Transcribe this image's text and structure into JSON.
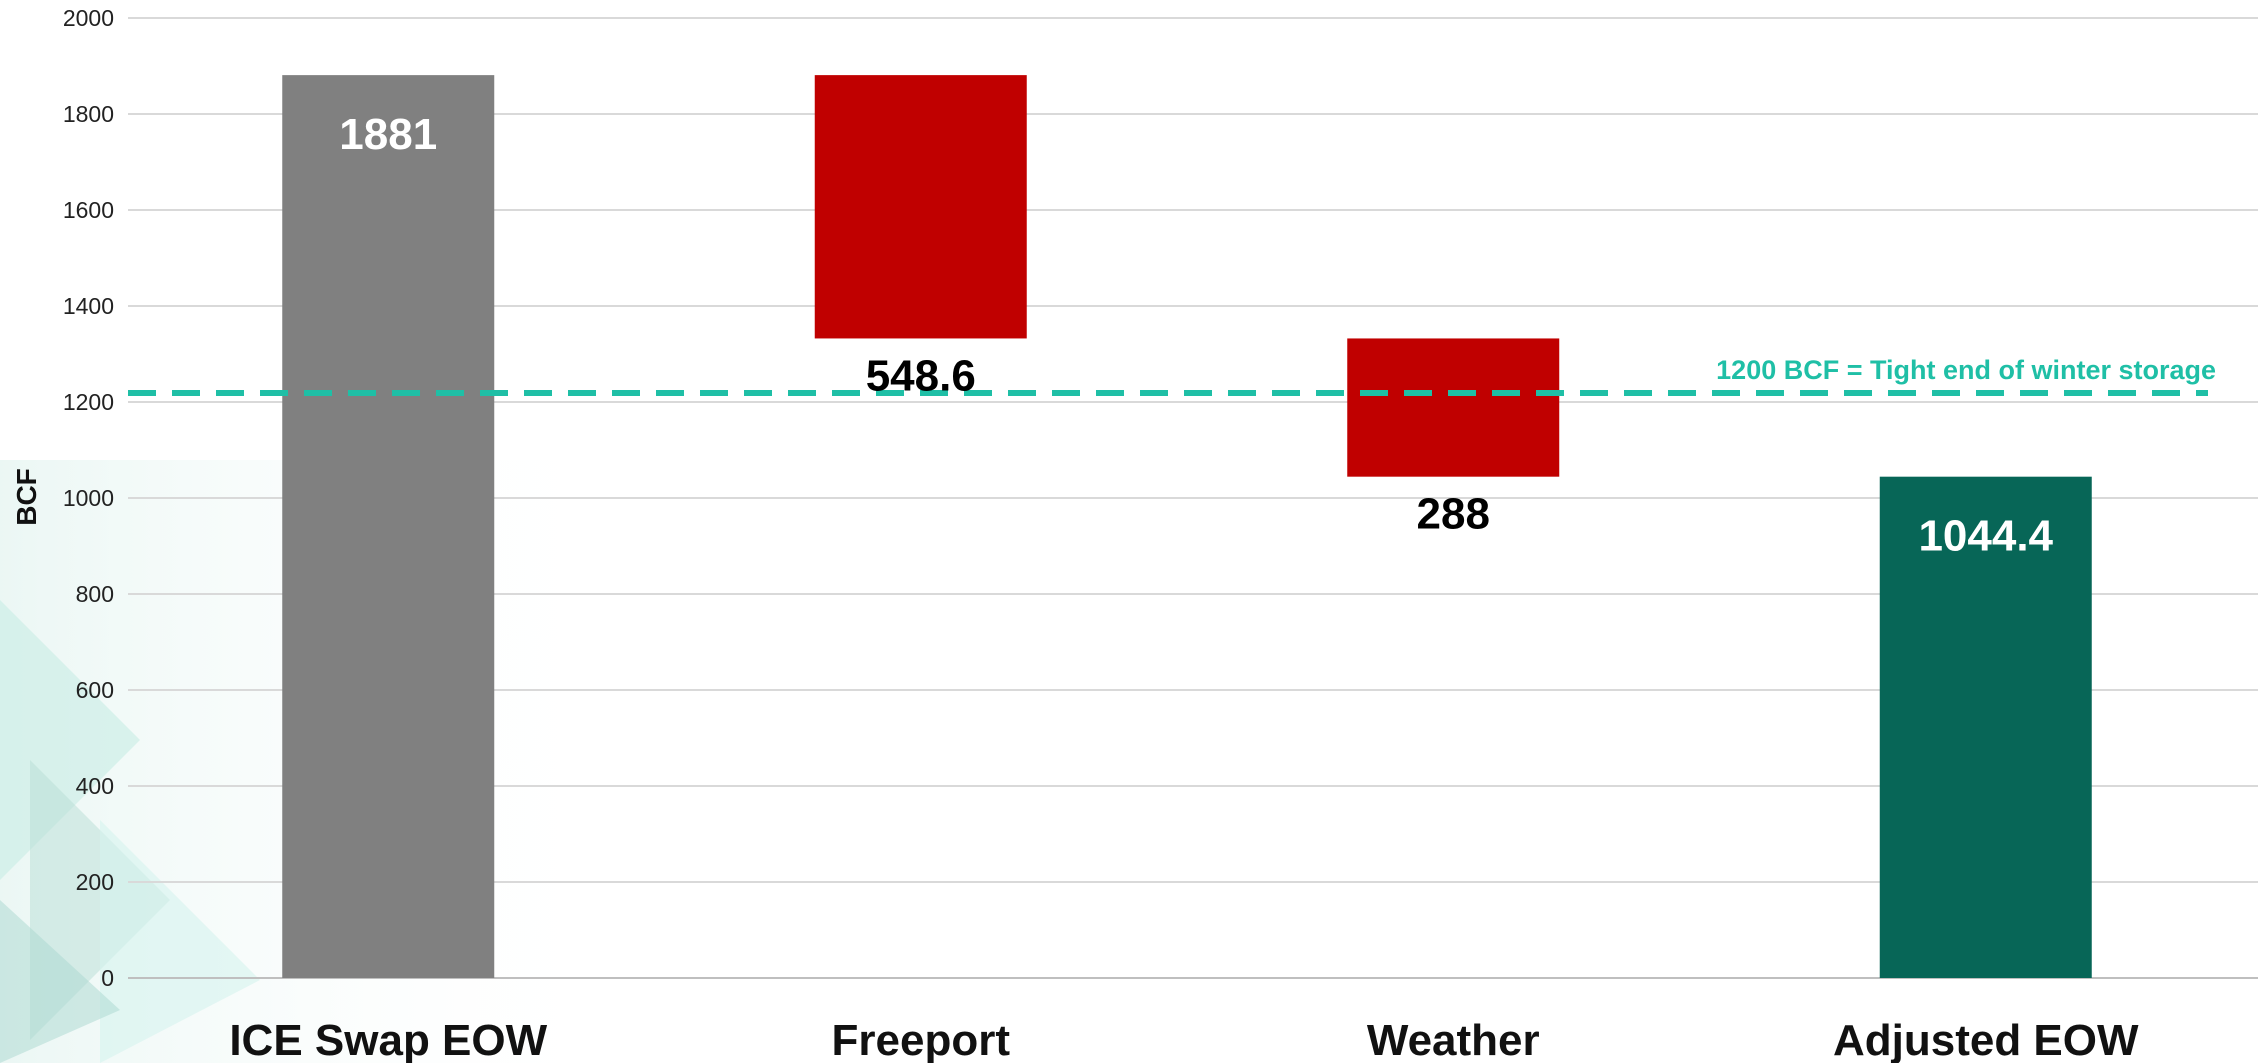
{
  "chart_data": {
    "type": "waterfall",
    "title": "",
    "xlabel": "",
    "ylabel": "BCF",
    "ylim": [
      0,
      2000
    ],
    "yticks": [
      0,
      200,
      400,
      600,
      800,
      1000,
      1200,
      1400,
      1600,
      1800,
      2000
    ],
    "grid": true,
    "legend": "none",
    "categories": [
      "ICE Swap EOW",
      "Freeport",
      "Weather",
      "Adjusted EOW"
    ],
    "bars": [
      {
        "category": "ICE Swap EOW",
        "kind": "total",
        "start": 0,
        "end": 1881,
        "label": "1881",
        "color": "#808080",
        "label_color": "#ffffff",
        "label_position": "inside-top"
      },
      {
        "category": "Freeport",
        "kind": "decrease",
        "start": 1881,
        "end": 1332.4,
        "label": "548.6",
        "color": "#c00000",
        "label_color": "#000000",
        "label_position": "below"
      },
      {
        "category": "Weather",
        "kind": "decrease",
        "start": 1332.4,
        "end": 1044.4,
        "label": "288",
        "color": "#c00000",
        "label_color": "#000000",
        "label_position": "below"
      },
      {
        "category": "Adjusted EOW",
        "kind": "total",
        "start": 0,
        "end": 1044.4,
        "label": "1044.4",
        "color": "#076657",
        "label_color": "#ffffff",
        "label_position": "inside-top"
      }
    ],
    "reference_line": {
      "value": 1200,
      "label": "1200 BCF = Tight end of winter storage",
      "color": "#1fbfa6",
      "style": "dashed"
    }
  }
}
